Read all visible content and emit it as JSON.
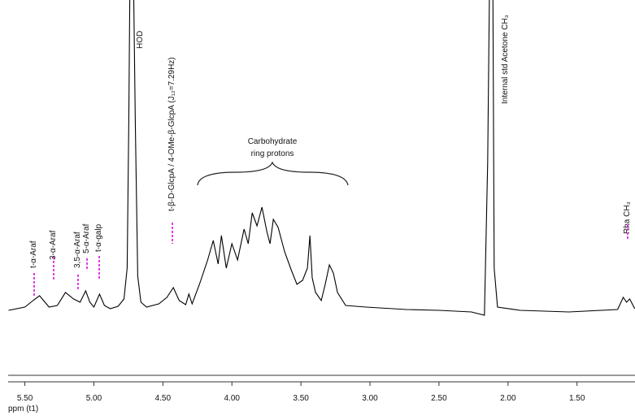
{
  "chart_data": {
    "type": "line",
    "x_label": "ppm (t1)",
    "xlim": [
      5.68,
      1.08
    ],
    "ylim": [
      0,
      100
    ],
    "xticks": [
      {
        "value": 5.5,
        "label": "5.50"
      },
      {
        "value": 5,
        "label": "5.00"
      },
      {
        "value": 4.5,
        "label": "4.50"
      },
      {
        "value": 4,
        "label": "4.00"
      },
      {
        "value": 3.5,
        "label": "3.50"
      },
      {
        "value": 3,
        "label": "3.00"
      },
      {
        "value": 2.5,
        "label": "2.50"
      },
      {
        "value": 2,
        "label": "2.00"
      },
      {
        "value": 1.5,
        "label": "1.50"
      }
    ],
    "color": "#000000",
    "x": [
      5.618,
      5.5,
      5.441,
      5.394,
      5.324,
      5.265,
      5.206,
      5.147,
      5.1,
      5.059,
      5.029,
      5.0,
      4.959,
      4.924,
      4.882,
      4.824,
      4.782,
      4.759,
      4.747,
      4.735,
      4.718,
      4.7,
      4.682,
      4.659,
      4.618,
      4.529,
      4.471,
      4.424,
      4.382,
      4.335,
      4.312,
      4.288,
      4.235,
      4.176,
      4.135,
      4.1,
      4.076,
      4.041,
      4.0,
      3.959,
      3.912,
      3.882,
      3.853,
      3.818,
      3.782,
      3.747,
      3.724,
      3.7,
      3.665,
      3.618,
      3.571,
      3.529,
      3.488,
      3.453,
      3.435,
      3.418,
      3.394,
      3.353,
      3.324,
      3.294,
      3.265,
      3.235,
      3.176,
      3.029,
      2.735,
      2.5,
      2.265,
      2.171,
      2.147,
      2.129,
      2.112,
      2.1,
      2.076,
      1.912,
      1.559,
      1.206,
      1.165,
      1.141,
      1.118,
      1.082
    ],
    "values": [
      4.5,
      5.5,
      7.5,
      9,
      5.5,
      6,
      10,
      8,
      7,
      10.5,
      7,
      5.5,
      9.5,
      6,
      5,
      5.75,
      8,
      17.5,
      62.5,
      125,
      125,
      62.5,
      15,
      7,
      5.5,
      6.5,
      8.5,
      11.5,
      7.5,
      6.25,
      9.5,
      6.5,
      12.5,
      20,
      26,
      18.75,
      27.5,
      17.5,
      25,
      20,
      29.5,
      25,
      34.5,
      30.5,
      36.25,
      28.75,
      25,
      32.5,
      30,
      22.5,
      17,
      12.5,
      13.75,
      17.5,
      27.5,
      14.5,
      10,
      7.5,
      12.5,
      18.5,
      16,
      10,
      6,
      5.5,
      4.75,
      4.5,
      4,
      3,
      50,
      125,
      125,
      17.5,
      5.5,
      4.5,
      4,
      4.75,
      8.5,
      7,
      8,
      5
    ],
    "annotations": [
      "t-α-Araf",
      "3-α-Araf",
      "3,5-α-Araf",
      "5-α-Araf",
      "t-α-galp",
      "t-β-D-GlcpA / 4-OMe-β-GlcpA (J₁₂=7.29Hz)",
      "HOD",
      "Carbohydrate",
      "ring protons",
      "Internal std Acetone CH₃",
      "Rha CH₃"
    ]
  }
}
